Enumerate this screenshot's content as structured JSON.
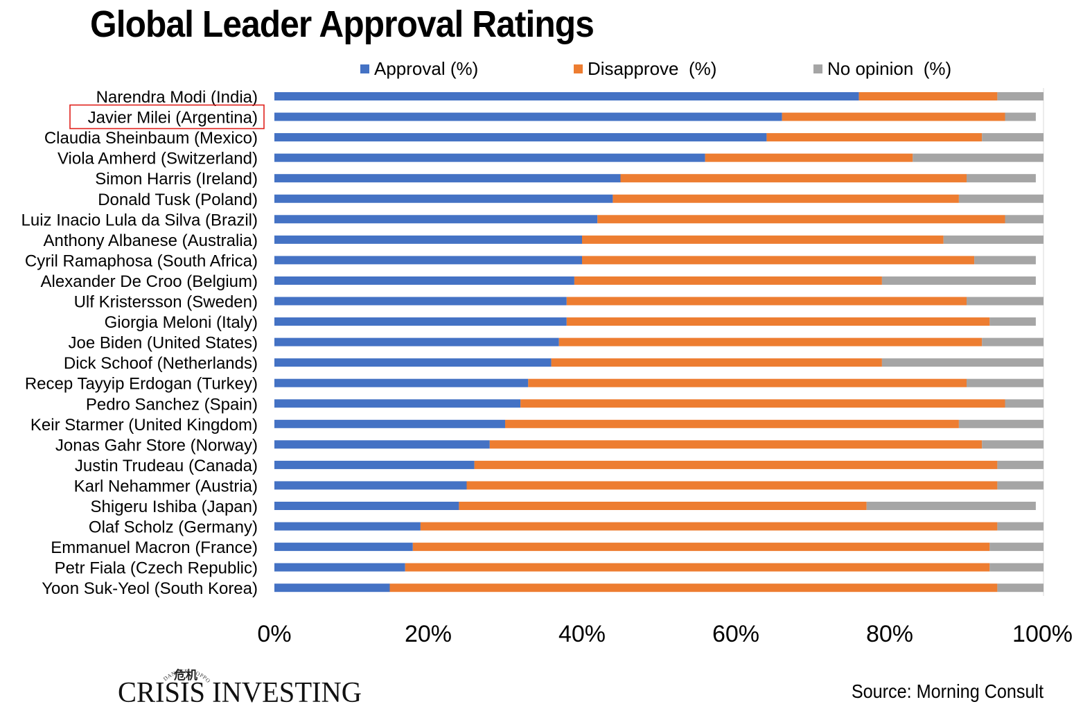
{
  "chart_data": {
    "type": "bar",
    "orientation": "horizontal",
    "stacked": "percent",
    "title": "Global Leader Approval Ratings",
    "categories": [
      "Narendra Modi (India)",
      "Javier Milei (Argentina)",
      "Claudia Sheinbaum (Mexico)",
      "Viola Amherd (Switzerland)",
      "Simon Harris (Ireland)",
      "Donald Tusk (Poland)",
      "Luiz Inacio Lula da Silva (Brazil)",
      "Anthony Albanese (Australia)",
      "Cyril Ramaphosa (South Africa)",
      "Alexander De Croo (Belgium)",
      "Ulf Kristersson (Sweden)",
      "Giorgia Meloni (Italy)",
      "Joe Biden (United States)",
      "Dick Schoof (Netherlands)",
      "Recep Tayyip Erdogan (Turkey)",
      "Pedro Sanchez (Spain)",
      "Keir Starmer (United Kingdom)",
      "Jonas Gahr Store (Norway)",
      "Justin Trudeau (Canada)",
      "Karl Nehammer (Austria)",
      "Shigeru Ishiba (Japan)",
      "Olaf Scholz (Germany)",
      "Emmanuel Macron (France)",
      "Petr Fiala (Czech Republic)",
      "Yoon Suk-Yeol (South Korea)"
    ],
    "series": [
      {
        "name": "Approval (%)",
        "color": "#4472C4",
        "values": [
          76,
          66,
          64,
          56,
          45,
          44,
          42,
          40,
          40,
          39,
          38,
          38,
          37,
          36,
          33,
          32,
          30,
          28,
          26,
          25,
          24,
          19,
          18,
          17,
          15
        ]
      },
      {
        "name": "Disapprove  (%)",
        "color": "#ED7D31",
        "values": [
          18,
          29,
          28,
          27,
          45,
          45,
          53,
          47,
          51,
          40,
          52,
          55,
          55,
          43,
          57,
          63,
          59,
          64,
          68,
          69,
          53,
          75,
          75,
          76,
          79
        ]
      },
      {
        "name": "No opinion  (%)",
        "color": "#A5A5A5",
        "values": [
          6,
          4,
          8,
          17,
          9,
          11,
          5,
          13,
          8,
          20,
          10,
          6,
          8,
          21,
          10,
          5,
          11,
          8,
          6,
          6,
          22,
          6,
          7,
          7,
          6
        ]
      }
    ],
    "x_ticks": [
      "0%",
      "20%",
      "40%",
      "60%",
      "80%",
      "100%"
    ],
    "xlim": [
      0,
      100
    ],
    "highlighted_category": "Javier Milei (Argentina)",
    "highlight_color": "#E0201B",
    "legend_position": "top",
    "grid": false
  },
  "source": "Source: Morning Consult",
  "logo": {
    "name": "CRISIS INVESTING",
    "arc_text": "DANGER + OPPORTUNITY",
    "symbol": "危机",
    "icon": "crisis-investing-logo"
  }
}
